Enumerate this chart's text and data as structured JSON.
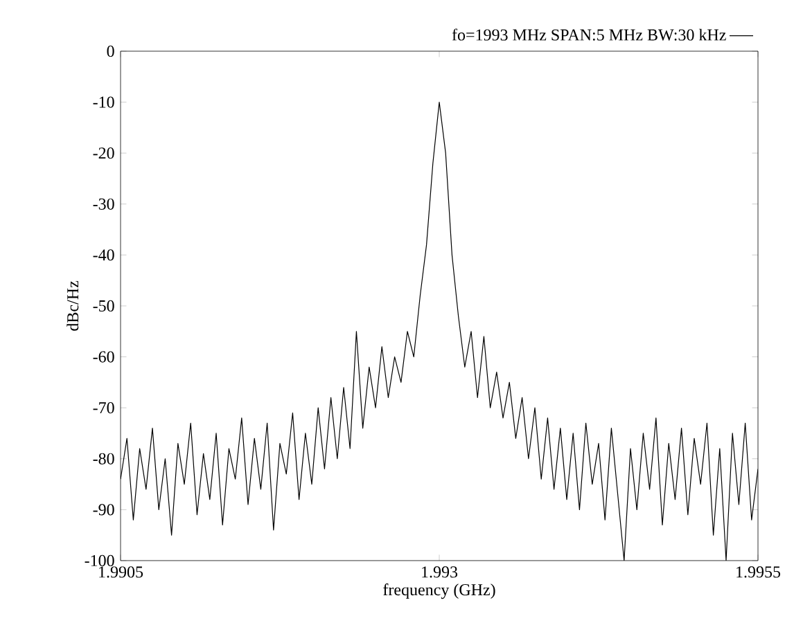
{
  "chart_data": {
    "type": "line",
    "xlabel": "frequency (GHz)",
    "ylabel": "dBc/Hz",
    "x": [
      1.9905,
      1.99055,
      1.9906,
      1.99065,
      1.9907,
      1.99075,
      1.9908,
      1.99085,
      1.9909,
      1.99095,
      1.991,
      1.99105,
      1.9911,
      1.99115,
      1.9912,
      1.99125,
      1.9913,
      1.99135,
      1.9914,
      1.99145,
      1.9915,
      1.99155,
      1.9916,
      1.99165,
      1.9917,
      1.99175,
      1.9918,
      1.99185,
      1.9919,
      1.99195,
      1.992,
      1.99205,
      1.9921,
      1.99215,
      1.9922,
      1.99225,
      1.9923,
      1.99235,
      1.9924,
      1.99245,
      1.9925,
      1.99255,
      1.9926,
      1.99265,
      1.9927,
      1.99275,
      1.9928,
      1.99285,
      1.9929,
      1.99295,
      1.993,
      1.99305,
      1.9931,
      1.99315,
      1.9932,
      1.99325,
      1.9933,
      1.99335,
      1.9934,
      1.99345,
      1.9935,
      1.99355,
      1.9936,
      1.99365,
      1.9937,
      1.99375,
      1.9938,
      1.99385,
      1.9939,
      1.99395,
      1.994,
      1.99405,
      1.9941,
      1.99415,
      1.9942,
      1.99425,
      1.9943,
      1.99435,
      1.9944,
      1.99445,
      1.9945,
      1.99455,
      1.9946,
      1.99465,
      1.9947,
      1.99475,
      1.9948,
      1.99485,
      1.9949,
      1.99495,
      1.995,
      1.99505,
      1.9951,
      1.99515,
      1.9952,
      1.99525,
      1.9953,
      1.99535,
      1.9954,
      1.99545,
      1.9955
    ],
    "series": [
      {
        "name": "fo=1993 MHz  SPAN:5 MHz  BW:30 kHz",
        "color": "#000000",
        "values": [
          -84,
          -76,
          -92,
          -78,
          -86,
          -74,
          -90,
          -80,
          -95,
          -77,
          -85,
          -73,
          -91,
          -79,
          -88,
          -75,
          -93,
          -78,
          -84,
          -72,
          -89,
          -76,
          -86,
          -73,
          -94,
          -77,
          -83,
          -71,
          -88,
          -75,
          -85,
          -70,
          -82,
          -68,
          -80,
          -66,
          -78,
          -55,
          -74,
          -62,
          -70,
          -58,
          -68,
          -60,
          -65,
          -55,
          -60,
          -48,
          -38,
          -22,
          -10,
          -20,
          -40,
          -52,
          -62,
          -55,
          -68,
          -56,
          -70,
          -63,
          -72,
          -65,
          -76,
          -68,
          -80,
          -70,
          -84,
          -72,
          -86,
          -74,
          -88,
          -75,
          -90,
          -73,
          -85,
          -77,
          -92,
          -74,
          -87,
          -100,
          -78,
          -90,
          -75,
          -86,
          -72,
          -93,
          -77,
          -88,
          -74,
          -91,
          -76,
          -85,
          -73,
          -95,
          -78,
          -100,
          -75,
          -89,
          -73,
          -92,
          -82
        ]
      }
    ],
    "xlim": [
      1.9905,
      1.9955
    ],
    "ylim": [
      -100,
      0
    ],
    "xticks": [
      1.9905,
      1.993,
      1.9955
    ],
    "yticks": [
      -100,
      -90,
      -80,
      -70,
      -60,
      -50,
      -40,
      -30,
      -20,
      -10,
      0
    ],
    "legend": "top",
    "grid": false,
    "marker": "none",
    "line_style": "solid"
  }
}
